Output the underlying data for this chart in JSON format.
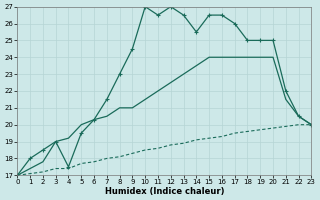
{
  "xlabel": "Humidex (Indice chaleur)",
  "xlim": [
    0,
    23
  ],
  "ylim": [
    17,
    27
  ],
  "yticks": [
    17,
    18,
    19,
    20,
    21,
    22,
    23,
    24,
    25,
    26,
    27
  ],
  "xticks": [
    0,
    1,
    2,
    3,
    4,
    5,
    6,
    7,
    8,
    9,
    10,
    11,
    12,
    13,
    14,
    15,
    16,
    17,
    18,
    19,
    20,
    21,
    22,
    23
  ],
  "bg_color": "#cde8e8",
  "line_color": "#1a6b5a",
  "grid_color": "#b5d5d5",
  "series_dashed": {
    "x": [
      0,
      1,
      2,
      3,
      4,
      5,
      6,
      7,
      8,
      9,
      10,
      11,
      12,
      13,
      14,
      15,
      16,
      17,
      18,
      19,
      20,
      21,
      22,
      23
    ],
    "y": [
      17.0,
      17.1,
      17.2,
      17.4,
      17.4,
      17.7,
      17.8,
      18.0,
      18.1,
      18.3,
      18.5,
      18.6,
      18.8,
      18.9,
      19.1,
      19.2,
      19.3,
      19.5,
      19.6,
      19.7,
      19.8,
      19.9,
      20.0,
      20.0
    ]
  },
  "series_middle": {
    "x": [
      0,
      1,
      2,
      3,
      4,
      5,
      6,
      7,
      8,
      9,
      10,
      11,
      12,
      13,
      14,
      15,
      16,
      17,
      18,
      19,
      20,
      21,
      22,
      23
    ],
    "y": [
      17.0,
      17.4,
      17.8,
      19.0,
      19.2,
      20.0,
      20.3,
      20.5,
      21.0,
      21.0,
      21.5,
      22.0,
      22.5,
      23.0,
      23.5,
      24.0,
      24.0,
      24.0,
      24.0,
      24.0,
      24.0,
      21.5,
      20.5,
      20.0
    ]
  },
  "series_top": {
    "x": [
      0,
      1,
      2,
      3,
      4,
      5,
      6,
      7,
      8,
      9,
      10,
      11,
      12,
      13,
      14,
      15,
      16,
      17,
      18,
      19,
      20,
      21,
      22,
      23
    ],
    "y": [
      17.0,
      18.0,
      18.5,
      19.0,
      17.5,
      19.5,
      20.3,
      21.5,
      23.0,
      24.5,
      27.0,
      26.5,
      27.0,
      26.5,
      25.5,
      26.5,
      26.5,
      26.0,
      25.0,
      25.0,
      25.0,
      22.0,
      20.5,
      20.0
    ]
  }
}
